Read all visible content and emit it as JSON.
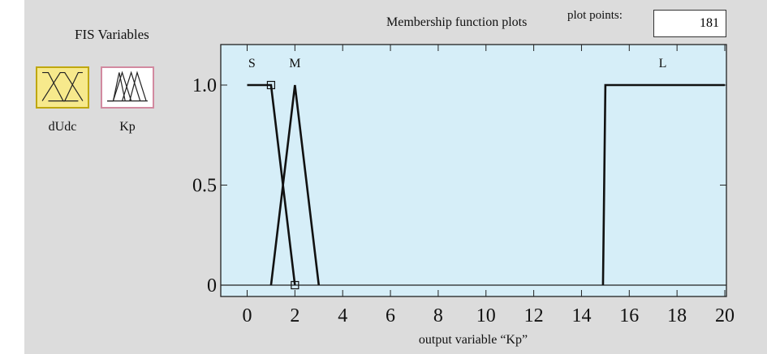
{
  "fis_panel": {
    "title": "FIS Variables",
    "variables": [
      {
        "label": "dUdc",
        "icon": "input-variable-icon",
        "color": "#f7e98c",
        "selected": true
      },
      {
        "label": "Kp",
        "icon": "output-variable-icon",
        "color": "#ffffff",
        "selected": false
      }
    ]
  },
  "plot_header": {
    "title": "Membership function plots",
    "plot_points_label": "plot points:",
    "plot_points_value": "181"
  },
  "chart_data": {
    "type": "line",
    "title": "",
    "xlabel": "output variable “Kp”",
    "ylabel": "",
    "xlim": [
      0,
      20
    ],
    "ylim": [
      0,
      1
    ],
    "xticks": [
      "0",
      "2",
      "4",
      "6",
      "8",
      "10",
      "12",
      "14",
      "16",
      "18",
      "20"
    ],
    "yticks": [
      "0",
      "0.5",
      "1.0"
    ],
    "grid": false,
    "background": "#d6eef8",
    "series": [
      {
        "name": "S",
        "x": [
          0,
          1,
          2
        ],
        "y": [
          1,
          1,
          0
        ],
        "label_x": 0.2
      },
      {
        "name": "M",
        "x": [
          1,
          2,
          3
        ],
        "y": [
          0,
          1,
          0
        ],
        "label_x": 2.0
      },
      {
        "name": "L",
        "x": [
          14.9,
          15,
          20
        ],
        "y": [
          0,
          1,
          1
        ],
        "label_x": 17.4
      }
    ],
    "markers": [
      {
        "x": 1,
        "y": 1
      },
      {
        "x": 2,
        "y": 0
      }
    ]
  }
}
